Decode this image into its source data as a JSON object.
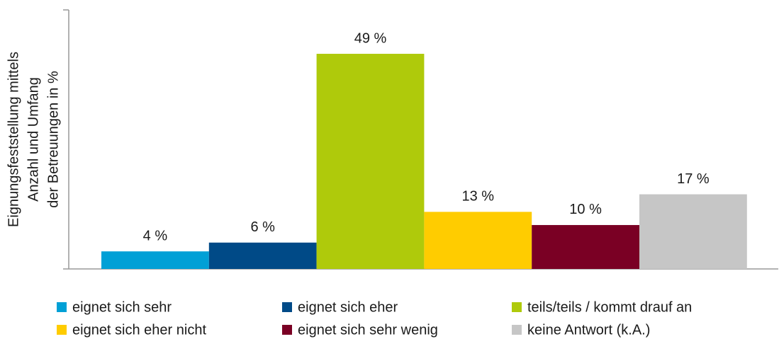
{
  "chart_data": {
    "type": "bar",
    "y_label": [
      "Eignungsfeststellung mittels",
      "Anzahl und Umfang",
      "der Betreuungen in %"
    ],
    "ylim": [
      0,
      59
    ],
    "legend": "bottom",
    "series": [
      {
        "name": "eignet sich sehr",
        "color": "#00a0d6",
        "values": [
          4
        ],
        "value_labels": [
          "4 %"
        ]
      },
      {
        "name": "eignet sich eher",
        "color": "#004a87",
        "values": [
          6
        ],
        "value_labels": [
          "6 %"
        ]
      },
      {
        "name": "teils/teils / kommt drauf an",
        "color": "#afca0b",
        "values": [
          49
        ],
        "value_labels": [
          "49 %"
        ]
      },
      {
        "name": "eignet sich eher nicht",
        "color": "#ffcc00",
        "values": [
          13
        ],
        "value_labels": [
          "13 %"
        ]
      },
      {
        "name": "eignet sich sehr wenig",
        "color": "#7a0024",
        "values": [
          10
        ],
        "value_labels": [
          "10 %"
        ]
      },
      {
        "name": "keine Antwort (k.A.)",
        "color": "#c6c6c6",
        "values": [
          17
        ],
        "value_labels": [
          "17 %"
        ]
      }
    ]
  }
}
